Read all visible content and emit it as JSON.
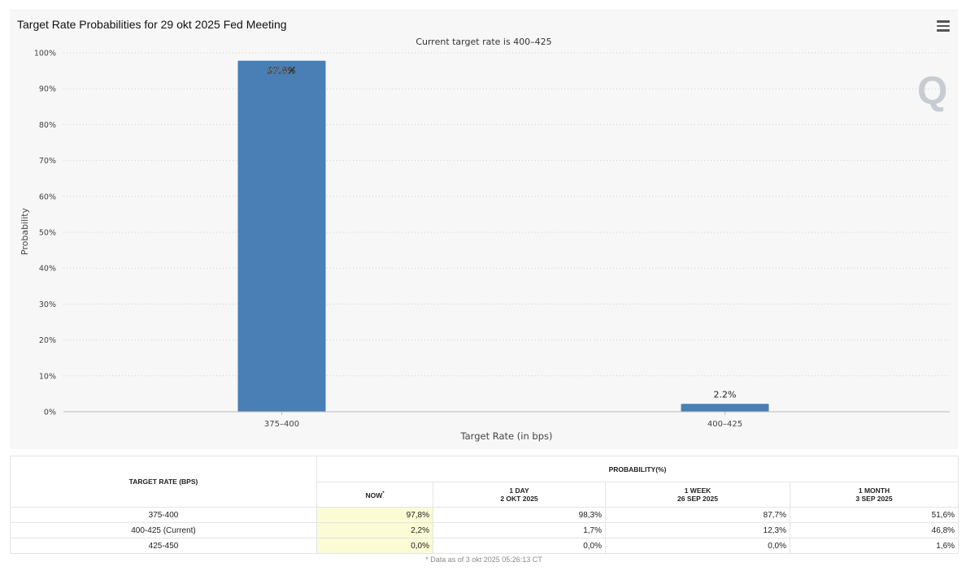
{
  "chart_data": {
    "type": "bar",
    "title": "Target Rate Probabilities for 29 okt 2025 Fed Meeting",
    "subtitle": "Current target rate is 400–425",
    "xlabel": "Target Rate (in bps)",
    "ylabel": "Probability",
    "categories": [
      "375–400",
      "400–425"
    ],
    "values": [
      97.8,
      2.2
    ],
    "data_labels": [
      "97.8%",
      "2.2%"
    ],
    "ylim": [
      0,
      100
    ],
    "yticks": [
      "0%",
      "10%",
      "20%",
      "30%",
      "40%",
      "50%",
      "60%",
      "70%",
      "80%",
      "90%",
      "100%"
    ],
    "grid": true,
    "color": "#4a7fb5",
    "legend": "none"
  },
  "table": {
    "header_rate": "TARGET RATE (BPS)",
    "header_prob": "PROBABILITY(%)",
    "columns": [
      {
        "line1": "NOW",
        "line2": "",
        "marker": "*"
      },
      {
        "line1": "1 DAY",
        "line2": "2 OKT 2025",
        "marker": ""
      },
      {
        "line1": "1 WEEK",
        "line2": "26 SEP 2025",
        "marker": ""
      },
      {
        "line1": "1 MONTH",
        "line2": "3 SEP 2025",
        "marker": ""
      }
    ],
    "rows": [
      {
        "rate": "375-400",
        "values": [
          "97,8%",
          "98,3%",
          "87,7%",
          "51,6%"
        ]
      },
      {
        "rate": "400-425 (Current)",
        "values": [
          "2,2%",
          "1,7%",
          "12,3%",
          "46,8%"
        ]
      },
      {
        "rate": "425-450",
        "values": [
          "0,0%",
          "0,0%",
          "0,0%",
          "1,6%"
        ]
      }
    ],
    "footnote": "* Data as of 3 okt 2025 05:26:13 CT"
  },
  "ui": {
    "menu_icon": "hamburger-menu-icon",
    "logo": "Q",
    "logo_name": "logo-watermark"
  }
}
